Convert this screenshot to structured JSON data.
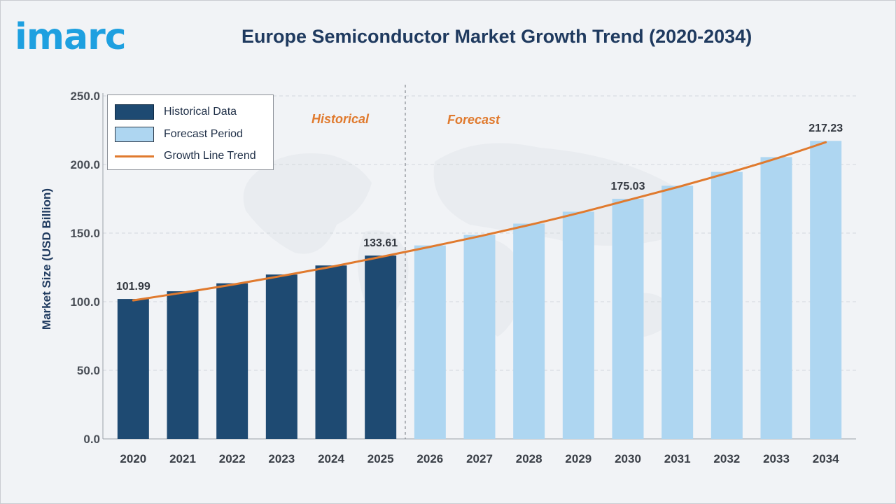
{
  "brand": {
    "logo_text": "imarc"
  },
  "chart_data": {
    "type": "bar",
    "title": "Europe Semiconductor Market Growth Trend (2020-2034)",
    "ylabel": "Market Size (USD Billion)",
    "xlabel": "",
    "ylim": [
      0,
      250
    ],
    "y_ticks": [
      "0.0",
      "50.0",
      "100.0",
      "150.0",
      "200.0",
      "250.0"
    ],
    "categories": [
      "2020",
      "2021",
      "2022",
      "2023",
      "2024",
      "2025",
      "2026",
      "2027",
      "2028",
      "2029",
      "2030",
      "2031",
      "2032",
      "2033",
      "2034"
    ],
    "series": [
      {
        "name": "Historical Data",
        "color": "#1e4a72",
        "values": [
          101.99,
          107.6,
          113.4,
          119.8,
          126.4,
          133.61,
          null,
          null,
          null,
          null,
          null,
          null,
          null,
          null,
          null
        ]
      },
      {
        "name": "Forecast Period",
        "color": "#aed6f1",
        "values": [
          null,
          null,
          null,
          null,
          null,
          null,
          141.0,
          148.7,
          156.9,
          165.6,
          175.03,
          184.5,
          194.6,
          205.4,
          217.23
        ]
      }
    ],
    "trend_line": {
      "name": "Growth Line Trend",
      "color": "#e07a2e",
      "values": [
        101.99,
        107.6,
        113.4,
        119.8,
        126.4,
        133.61,
        141.0,
        148.7,
        156.9,
        165.6,
        175.03,
        184.5,
        194.6,
        205.4,
        217.23
      ]
    },
    "data_labels": [
      {
        "index": 0,
        "text": "101.99"
      },
      {
        "index": 5,
        "text": "133.61"
      },
      {
        "index": 10,
        "text": "175.03"
      },
      {
        "index": 14,
        "text": "217.23"
      }
    ],
    "section_labels": {
      "historical": "Historical",
      "forecast": "Forecast"
    },
    "divider_after_index": 5,
    "grid": true,
    "legend_position": "top-left"
  },
  "legend": {
    "historical": "Historical Data",
    "forecast": "Forecast Period",
    "trend": "Growth Line Trend"
  },
  "colors": {
    "historical": "#1e4a72",
    "forecast": "#aed6f1",
    "trend": "#e07a2e",
    "section_label": "#e07a2e",
    "title": "#1f3a5f",
    "logo": "#1ea0e0"
  }
}
